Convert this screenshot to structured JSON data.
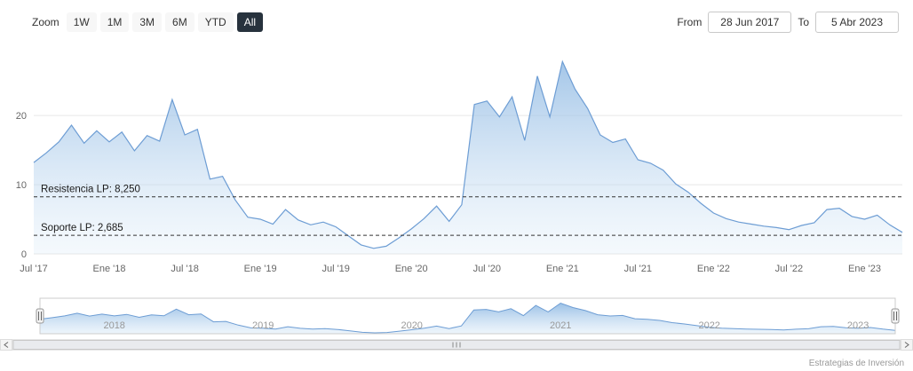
{
  "toolbar": {
    "zoom_label": "Zoom",
    "buttons": [
      {
        "label": "1W",
        "selected": false
      },
      {
        "label": "1M",
        "selected": false
      },
      {
        "label": "3M",
        "selected": false
      },
      {
        "label": "6M",
        "selected": false
      },
      {
        "label": "YTD",
        "selected": false
      },
      {
        "label": "All",
        "selected": true
      }
    ],
    "from_label": "From",
    "from_value": "28 Jun 2017",
    "to_label": "To",
    "to_value": "5 Abr 2023"
  },
  "footer": {
    "credit": "Estrategias de Inversión"
  },
  "chart_data": {
    "type": "area",
    "title": "",
    "xlabel": "",
    "ylabel": "",
    "x_start": "Jul 2017",
    "x_end": "Abr 2023",
    "x_unit": "month",
    "x_months_total": 69,
    "ylim": [
      0,
      29
    ],
    "y_ticks": [
      0,
      10,
      20
    ],
    "grid": "horizontal-only",
    "values": [
      13.2,
      14.6,
      16.2,
      18.6,
      16.0,
      17.8,
      16.2,
      17.6,
      14.9,
      17.1,
      16.3,
      22.3,
      17.2,
      18.0,
      10.8,
      11.2,
      7.8,
      5.3,
      5.0,
      4.3,
      6.4,
      4.9,
      4.2,
      4.6,
      3.9,
      2.6,
      1.3,
      0.8,
      1.1,
      2.3,
      3.6,
      5.1,
      6.9,
      4.7,
      7.1,
      21.6,
      22.1,
      19.8,
      22.7,
      16.4,
      25.7,
      19.8,
      27.8,
      23.8,
      21.0,
      17.2,
      16.1,
      16.6,
      13.6,
      13.1,
      12.1,
      10.1,
      8.9,
      7.3,
      5.9,
      5.1,
      4.6,
      4.3,
      4.0,
      3.8,
      3.5,
      4.1,
      4.5,
      6.4,
      6.6,
      5.4,
      5.0,
      5.6,
      4.2,
      3.1
    ],
    "x_ticks": [
      {
        "label": "Jul '17",
        "month": 0
      },
      {
        "label": "Ene '18",
        "month": 6
      },
      {
        "label": "Jul '18",
        "month": 12
      },
      {
        "label": "Ene '19",
        "month": 18
      },
      {
        "label": "Jul '19",
        "month": 24
      },
      {
        "label": "Ene '20",
        "month": 30
      },
      {
        "label": "Jul '20",
        "month": 36
      },
      {
        "label": "Ene '21",
        "month": 42
      },
      {
        "label": "Jul '21",
        "month": 48
      },
      {
        "label": "Ene '22",
        "month": 54
      },
      {
        "label": "Jul '22",
        "month": 60
      },
      {
        "label": "Ene '23",
        "month": 66
      }
    ],
    "plot_lines": [
      {
        "label": "Resistencia LP: 8,250",
        "value": 8.25
      },
      {
        "label": "Soporte LP: 2,685",
        "value": 2.685
      }
    ],
    "navigator": {
      "year_labels": [
        {
          "label": "2018",
          "month": 6
        },
        {
          "label": "2019",
          "month": 18
        },
        {
          "label": "2020",
          "month": 30
        },
        {
          "label": "2021",
          "month": 42
        },
        {
          "label": "2022",
          "month": 54
        },
        {
          "label": "2023",
          "month": 66
        }
      ]
    },
    "colors": {
      "line": "#6d9dd4",
      "fill_top": "#94bce4",
      "fill_bottom": "#dcebf8",
      "grid": "#e6e6e6",
      "plotline": "#333333",
      "axis_label": "#666666",
      "selected_button_bg": "#27323d",
      "nav_year_label": "#999999"
    }
  }
}
